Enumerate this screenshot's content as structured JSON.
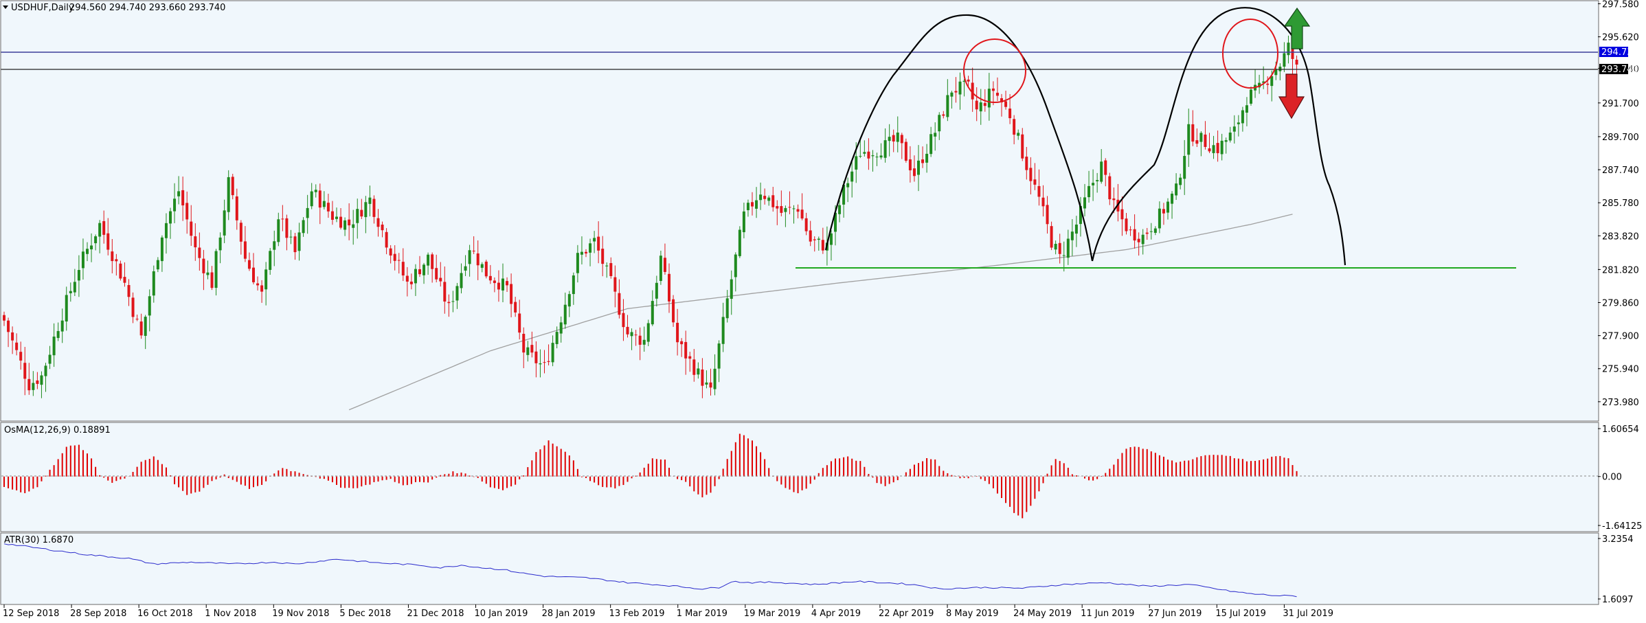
{
  "header": {
    "symbol_label": "USDHUF,Daily",
    "ohlc_label": "294.560 294.740 293.660 293.740"
  },
  "price_labels": {
    "current_price": "294.730",
    "line_price": "293.740"
  },
  "indicators": {
    "osma_label": "OsMA(12,26,9) 0.18891",
    "atr_label": "ATR(30) 1.6870"
  },
  "colors": {
    "background": "#F0F7FC",
    "bull_candle": "#1F8A1F",
    "bear_candle": "#E0161B",
    "osma_bars": "#E00000",
    "atr_line": "#2A2ACC",
    "ma_line": "#A0A0A0",
    "support_line": "#1FA81F",
    "bid_line": "#3A3F9A",
    "arrow_up": "#2E9A33",
    "arrow_down": "#DC2326"
  },
  "annotations": {
    "support_level": 282.0,
    "arrow_up_icon": "arrow-up-icon",
    "arrow_down_icon": "arrow-down-icon"
  },
  "chart_data": [
    {
      "type": "candlestick",
      "title": "USDHUF,Daily",
      "ylim": [
        273.2,
        297.6
      ],
      "y_ticks": [
        "297.580",
        "295.620",
        "293.740",
        "291.700",
        "289.700",
        "287.740",
        "285.780",
        "283.820",
        "281.820",
        "279.860",
        "277.900",
        "275.940",
        "273.980"
      ],
      "x_ticks": [
        "12 Sep 2018",
        "28 Sep 2018",
        "16 Oct 2018",
        "1 Nov 2018",
        "19 Nov 2018",
        "5 Dec 2018",
        "21 Dec 2018",
        "10 Jan 2019",
        "28 Jan 2019",
        "13 Feb 2019",
        "1 Mar 2019",
        "19 Mar 2019",
        "4 Apr 2019",
        "22 Apr 2019",
        "8 May 2019",
        "24 May 2019",
        "11 Jun 2019",
        "27 Jun 2019",
        "15 Jul 2019",
        "31 Jul 2019"
      ],
      "close_anchors": [
        [
          0,
          278.8
        ],
        [
          6,
          275.0
        ],
        [
          9,
          275.5
        ],
        [
          13,
          278.5
        ],
        [
          18,
          282.0
        ],
        [
          23,
          284.5
        ],
        [
          29,
          281.0
        ],
        [
          33,
          277.8
        ],
        [
          38,
          284.0
        ],
        [
          42,
          286.5
        ],
        [
          46,
          283.0
        ],
        [
          50,
          281.0
        ],
        [
          54,
          287.0
        ],
        [
          58,
          282.5
        ],
        [
          62,
          280.3
        ],
        [
          66,
          285.0
        ],
        [
          70,
          282.8
        ],
        [
          74,
          286.5
        ],
        [
          79,
          285.0
        ],
        [
          83,
          284.5
        ],
        [
          88,
          286.0
        ],
        [
          92,
          283.5
        ],
        [
          97,
          281.0
        ],
        [
          102,
          282.5
        ],
        [
          107,
          279.5
        ],
        [
          112,
          283.2
        ],
        [
          116,
          281.6
        ],
        [
          121,
          280.7
        ],
        [
          125,
          277.0
        ],
        [
          130,
          276.0
        ],
        [
          134,
          279.0
        ],
        [
          138,
          282.5
        ],
        [
          142,
          283.5
        ],
        [
          146,
          281.0
        ],
        [
          150,
          278.0
        ],
        [
          154,
          277.6
        ],
        [
          158,
          282.5
        ],
        [
          162,
          277.5
        ],
        [
          166,
          276.0
        ],
        [
          170,
          274.5
        ],
        [
          174,
          280.0
        ],
        [
          178,
          285.0
        ],
        [
          182,
          286.5
        ],
        [
          187,
          285.2
        ],
        [
          191,
          285.5
        ],
        [
          194,
          283.5
        ],
        [
          198,
          283.2
        ],
        [
          202,
          286.5
        ],
        [
          206,
          288.8
        ],
        [
          210,
          288.9
        ],
        [
          215,
          289.5
        ],
        [
          219,
          287.5
        ],
        [
          224,
          290.0
        ],
        [
          228,
          292.5
        ],
        [
          232,
          292.6
        ],
        [
          234,
          291.2
        ],
        [
          238,
          292.5
        ],
        [
          242,
          291.0
        ],
        [
          246,
          288.0
        ],
        [
          249,
          286.0
        ],
        [
          252,
          283.5
        ],
        [
          254,
          282.5
        ],
        [
          258,
          284.5
        ],
        [
          261,
          286.5
        ],
        [
          264,
          288.0
        ],
        [
          267,
          285.5
        ],
        [
          271,
          284.0
        ],
        [
          274,
          283.8
        ],
        [
          278,
          285.0
        ],
        [
          282,
          286.5
        ],
        [
          285,
          290.0
        ],
        [
          288,
          289.5
        ],
        [
          292,
          289.0
        ],
        [
          296,
          290.0
        ],
        [
          299,
          292.0
        ],
        [
          302,
          292.5
        ],
        [
          305,
          293.5
        ],
        [
          307,
          294.0
        ],
        [
          309,
          295.0
        ],
        [
          311,
          293.7
        ]
      ],
      "moving_average": [
        [
          83,
          273.5
        ],
        [
          117,
          277.0
        ],
        [
          150,
          279.5
        ],
        [
          200,
          281.0
        ],
        [
          240,
          282.1
        ],
        [
          270,
          283.0
        ],
        [
          300,
          284.5
        ],
        [
          310,
          285.1
        ]
      ]
    },
    {
      "type": "bar",
      "title": "OsMA(12,26,9) 0.18891",
      "ylim": [
        -1.64125,
        1.60654
      ],
      "y_ticks": [
        "1.60654",
        "0.00",
        "-1.64125"
      ],
      "last_value": 0.18891,
      "anchors": [
        [
          0,
          -0.35
        ],
        [
          5,
          -0.55
        ],
        [
          8,
          -0.35
        ],
        [
          12,
          0.4
        ],
        [
          15,
          1.0
        ],
        [
          18,
          1.05
        ],
        [
          21,
          0.6
        ],
        [
          23,
          0.05
        ],
        [
          26,
          -0.2
        ],
        [
          30,
          0.0
        ],
        [
          33,
          0.5
        ],
        [
          36,
          0.65
        ],
        [
          39,
          0.3
        ],
        [
          41,
          -0.25
        ],
        [
          44,
          -0.6
        ],
        [
          47,
          -0.5
        ],
        [
          50,
          -0.15
        ],
        [
          53,
          0.05
        ],
        [
          56,
          -0.2
        ],
        [
          59,
          -0.4
        ],
        [
          62,
          -0.3
        ],
        [
          64,
          0.0
        ],
        [
          67,
          0.3
        ],
        [
          69,
          0.2
        ],
        [
          72,
          0.1
        ],
        [
          75,
          0.0
        ],
        [
          78,
          -0.15
        ],
        [
          81,
          -0.35
        ],
        [
          84,
          -0.4
        ],
        [
          87,
          -0.3
        ],
        [
          90,
          -0.15
        ],
        [
          93,
          -0.1
        ],
        [
          96,
          -0.3
        ],
        [
          99,
          -0.2
        ],
        [
          102,
          -0.2
        ],
        [
          105,
          0.05
        ],
        [
          108,
          0.15
        ],
        [
          111,
          0.1
        ],
        [
          114,
          -0.05
        ],
        [
          117,
          -0.35
        ],
        [
          120,
          -0.45
        ],
        [
          123,
          -0.25
        ],
        [
          125,
          0.05
        ],
        [
          128,
          0.8
        ],
        [
          131,
          1.2
        ],
        [
          134,
          0.95
        ],
        [
          137,
          0.55
        ],
        [
          139,
          0.0
        ],
        [
          141,
          -0.15
        ],
        [
          144,
          -0.35
        ],
        [
          147,
          -0.4
        ],
        [
          150,
          -0.2
        ],
        [
          153,
          0.15
        ],
        [
          156,
          0.6
        ],
        [
          159,
          0.55
        ],
        [
          161,
          0.0
        ],
        [
          164,
          -0.2
        ],
        [
          166,
          -0.5
        ],
        [
          168,
          -0.7
        ],
        [
          170,
          -0.55
        ],
        [
          172,
          -0.1
        ],
        [
          174,
          0.6
        ],
        [
          177,
          1.45
        ],
        [
          180,
          1.2
        ],
        [
          183,
          0.6
        ],
        [
          185,
          0.0
        ],
        [
          188,
          -0.4
        ],
        [
          191,
          -0.55
        ],
        [
          193,
          -0.4
        ],
        [
          195,
          -0.1
        ],
        [
          197,
          0.3
        ],
        [
          200,
          0.6
        ],
        [
          203,
          0.65
        ],
        [
          206,
          0.5
        ],
        [
          208,
          0.1
        ],
        [
          210,
          -0.2
        ],
        [
          212,
          -0.3
        ],
        [
          214,
          -0.2
        ],
        [
          216,
          0.0
        ],
        [
          219,
          0.4
        ],
        [
          222,
          0.6
        ],
        [
          224,
          0.55
        ],
        [
          226,
          0.2
        ],
        [
          228,
          0.05
        ],
        [
          230,
          -0.05
        ],
        [
          232,
          -0.05
        ],
        [
          234,
          0.0
        ],
        [
          237,
          -0.25
        ],
        [
          240,
          -0.7
        ],
        [
          243,
          -1.2
        ],
        [
          245,
          -1.4
        ],
        [
          247,
          -1.0
        ],
        [
          249,
          -0.5
        ],
        [
          251,
          0.1
        ],
        [
          253,
          0.6
        ],
        [
          255,
          0.45
        ],
        [
          257,
          0.1
        ],
        [
          259,
          0.0
        ],
        [
          261,
          -0.15
        ],
        [
          263,
          -0.1
        ],
        [
          265,
          0.1
        ],
        [
          267,
          0.4
        ],
        [
          270,
          0.95
        ],
        [
          273,
          1.0
        ],
        [
          276,
          0.85
        ],
        [
          279,
          0.65
        ],
        [
          282,
          0.45
        ],
        [
          285,
          0.55
        ],
        [
          288,
          0.7
        ],
        [
          291,
          0.75
        ],
        [
          294,
          0.7
        ],
        [
          297,
          0.6
        ],
        [
          300,
          0.5
        ],
        [
          303,
          0.55
        ],
        [
          306,
          0.7
        ],
        [
          309,
          0.6
        ],
        [
          311,
          0.19
        ]
      ]
    },
    {
      "type": "line",
      "title": "ATR(30) 1.6870",
      "ylim": [
        1.6097,
        3.2354
      ],
      "y_ticks": [
        "3.2354",
        "1.6097"
      ],
      "last_value": 1.687,
      "anchors": [
        [
          0,
          3.1
        ],
        [
          10,
          2.95
        ],
        [
          20,
          2.8
        ],
        [
          30,
          2.7
        ],
        [
          36,
          2.55
        ],
        [
          45,
          2.6
        ],
        [
          55,
          2.55
        ],
        [
          65,
          2.6
        ],
        [
          70,
          2.55
        ],
        [
          80,
          2.68
        ],
        [
          90,
          2.58
        ],
        [
          100,
          2.52
        ],
        [
          105,
          2.45
        ],
        [
          110,
          2.52
        ],
        [
          115,
          2.45
        ],
        [
          120,
          2.4
        ],
        [
          125,
          2.3
        ],
        [
          130,
          2.22
        ],
        [
          140,
          2.18
        ],
        [
          150,
          2.05
        ],
        [
          160,
          1.97
        ],
        [
          168,
          1.88
        ],
        [
          172,
          1.92
        ],
        [
          175,
          2.08
        ],
        [
          180,
          2.05
        ],
        [
          185,
          2.06
        ],
        [
          195,
          2.0
        ],
        [
          205,
          2.08
        ],
        [
          215,
          2.03
        ],
        [
          220,
          1.98
        ],
        [
          225,
          1.88
        ],
        [
          235,
          1.92
        ],
        [
          245,
          1.9
        ],
        [
          255,
          2.0
        ],
        [
          265,
          2.05
        ],
        [
          275,
          1.95
        ],
        [
          285,
          2.0
        ],
        [
          295,
          1.82
        ],
        [
          300,
          1.75
        ],
        [
          306,
          1.7
        ],
        [
          311,
          1.687
        ]
      ]
    }
  ]
}
